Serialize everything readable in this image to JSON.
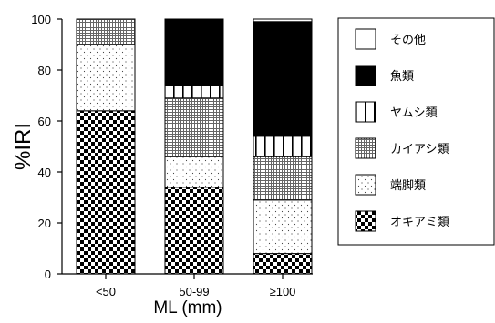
{
  "chart_data": {
    "type": "bar",
    "stacked": true,
    "xlabel": "ML (mm)",
    "ylabel": "%IRI",
    "ylim": [
      0,
      100
    ],
    "yticks": [
      0,
      20,
      40,
      60,
      80,
      100
    ],
    "categories": [
      "<50",
      "50-99",
      "≥100"
    ],
    "series": [
      {
        "name": "オキアミ類",
        "pattern": "checker",
        "values": [
          64,
          34,
          8
        ]
      },
      {
        "name": "端脚類",
        "pattern": "dots",
        "values": [
          26,
          12,
          21
        ]
      },
      {
        "name": "カイアシ類",
        "pattern": "grid",
        "values": [
          10,
          23,
          17
        ]
      },
      {
        "name": "ヤムシ類",
        "pattern": "vlines",
        "values": [
          0,
          5,
          8
        ]
      },
      {
        "name": "魚類",
        "pattern": "black",
        "values": [
          0,
          26,
          45
        ]
      },
      {
        "name": "その他",
        "pattern": "white",
        "values": [
          0,
          0,
          1
        ]
      }
    ],
    "legend_order": [
      "その他",
      "魚類",
      "ヤムシ類",
      "カイアシ類",
      "端脚類",
      "オキアミ類"
    ],
    "legend_position": "right"
  }
}
